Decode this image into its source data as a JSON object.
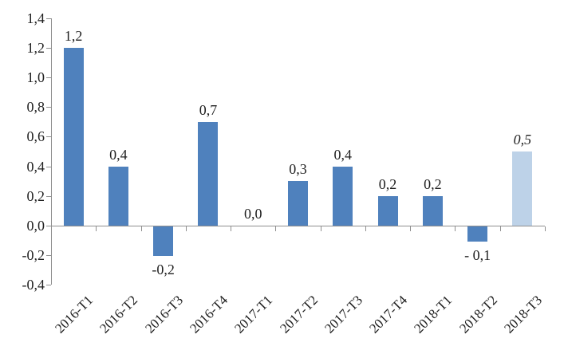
{
  "chart_data": {
    "type": "bar",
    "title": "",
    "xlabel": "",
    "ylabel": "",
    "categories": [
      "2016-T1",
      "2016-T2",
      "2016-T3",
      "2016-T4",
      "2017-T1",
      "2017-T2",
      "2017-T3",
      "2017-T4",
      "2018-T1",
      "2018-T2",
      "2018-T3"
    ],
    "values": [
      1.2,
      0.4,
      -0.2,
      0.7,
      0.0,
      0.3,
      0.4,
      0.2,
      0.2,
      -0.1,
      0.5
    ],
    "data_labels": [
      "1,2",
      "0,4",
      "-0,2",
      "0,7",
      "0,0",
      "0,3",
      "0,4",
      "0,2",
      "0,2",
      "- 0,1",
      "0,5"
    ],
    "ylim": [
      -0.4,
      1.4
    ],
    "ytick_step": 0.2,
    "ytick_labels": [
      "1,4",
      "1,2",
      "1,0",
      "0,8",
      "0,6",
      "0,4",
      "0,2",
      "0,0",
      "-0,2",
      "-0,4"
    ],
    "grid": "off",
    "legend": "none",
    "decimal_separator": ",",
    "bar_color": "#4F81BD",
    "highlight_bar_index": 10,
    "highlight_bar_color": "#BDD2E8",
    "highlight_label_style": "italic",
    "axis_color": "#8f8f8f",
    "text_color": "#1f1f1f"
  }
}
